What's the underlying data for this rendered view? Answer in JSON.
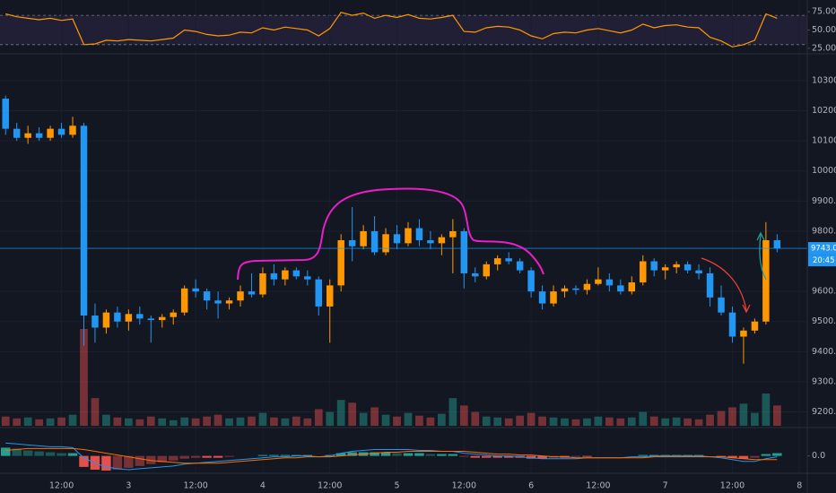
{
  "chart_data": [
    {
      "type": "line",
      "ylim": [
        20,
        86
      ],
      "yticks": [
        {
          "value": 75,
          "label": "75.00"
        },
        {
          "value": 50,
          "label": "50.00"
        },
        {
          "value": 25,
          "label": "25.00"
        }
      ],
      "levels": [
        70,
        30
      ],
      "color": "#ff9800",
      "band_color": "#7e57c2",
      "values": [
        72,
        68,
        66,
        64,
        66,
        63,
        65,
        30,
        31,
        36,
        35,
        37,
        36,
        35,
        37,
        39,
        50,
        48,
        44,
        42,
        43,
        47,
        46,
        53,
        50,
        54,
        52,
        50,
        42,
        52,
        74,
        70,
        73,
        66,
        70,
        67,
        71,
        66,
        65,
        67,
        70,
        48,
        47,
        53,
        55,
        54,
        50,
        42,
        38,
        45,
        47,
        46,
        50,
        52,
        49,
        46,
        50,
        58,
        53,
        56,
        57,
        54,
        53,
        40,
        35,
        27,
        30,
        36,
        72,
        66
      ]
    },
    {
      "type": "candlestick",
      "ylim": [
        9154,
        10383
      ],
      "xlim": [
        0.5,
        72.7
      ],
      "grid": true,
      "up_color": "#ff9800",
      "down_color": "#2196f3",
      "yticks": [
        {
          "value": 10300,
          "label": "10300.0"
        },
        {
          "value": 10200,
          "label": "10200.0"
        },
        {
          "value": 10100,
          "label": "10100.0"
        },
        {
          "value": 10000,
          "label": "10000.0"
        },
        {
          "value": 9900,
          "label": "9900.0"
        },
        {
          "value": 9800,
          "label": "9800.0"
        },
        {
          "value": 9600,
          "label": "9600.0"
        },
        {
          "value": 9500,
          "label": "9500.0"
        },
        {
          "value": 9400,
          "label": "9400.0"
        },
        {
          "value": 9300,
          "label": "9300.0"
        },
        {
          "value": 9200,
          "label": "9200.0"
        }
      ],
      "xticks": [
        {
          "value": 6,
          "label": "12:00"
        },
        {
          "value": 12,
          "label": "3"
        },
        {
          "value": 18,
          "label": "12:00"
        },
        {
          "value": 24,
          "label": "4"
        },
        {
          "value": 30,
          "label": "12:00"
        },
        {
          "value": 36,
          "label": "5"
        },
        {
          "value": 42,
          "label": "12:00"
        },
        {
          "value": 48,
          "label": "6"
        },
        {
          "value": 54,
          "label": "12:00"
        },
        {
          "value": 60,
          "label": "7"
        },
        {
          "value": 66,
          "label": "12:00"
        },
        {
          "value": 72,
          "label": "8"
        }
      ],
      "last_price": {
        "value": 9743,
        "label": "9743.0"
      },
      "countdown": "20:45",
      "ohlc": [
        [
          10240,
          10250,
          10120,
          10140
        ],
        [
          10140,
          10160,
          10100,
          10110
        ],
        [
          10110,
          10150,
          10090,
          10125
        ],
        [
          10125,
          10145,
          10100,
          10110
        ],
        [
          10110,
          10150,
          10100,
          10140
        ],
        [
          10140,
          10160,
          10110,
          10120
        ],
        [
          10120,
          10180,
          10110,
          10150
        ],
        [
          10150,
          10160,
          9420,
          9520
        ],
        [
          9520,
          9560,
          9430,
          9480
        ],
        [
          9480,
          9540,
          9460,
          9530
        ],
        [
          9530,
          9550,
          9480,
          9500
        ],
        [
          9500,
          9540,
          9470,
          9525
        ],
        [
          9525,
          9550,
          9490,
          9510
        ],
        [
          9510,
          9520,
          9430,
          9505
        ],
        [
          9505,
          9525,
          9480,
          9515
        ],
        [
          9515,
          9540,
          9490,
          9530
        ],
        [
          9530,
          9620,
          9520,
          9610
        ],
        [
          9610,
          9640,
          9580,
          9600
        ],
        [
          9600,
          9610,
          9540,
          9570
        ],
        [
          9570,
          9600,
          9510,
          9560
        ],
        [
          9560,
          9580,
          9540,
          9570
        ],
        [
          9570,
          9620,
          9550,
          9600
        ],
        [
          9600,
          9660,
          9580,
          9590
        ],
        [
          9590,
          9680,
          9580,
          9660
        ],
        [
          9660,
          9690,
          9620,
          9640
        ],
        [
          9640,
          9680,
          9620,
          9670
        ],
        [
          9670,
          9680,
          9640,
          9650
        ],
        [
          9650,
          9670,
          9620,
          9640
        ],
        [
          9640,
          9650,
          9520,
          9550
        ],
        [
          9550,
          9640,
          9430,
          9620
        ],
        [
          9620,
          9790,
          9600,
          9770
        ],
        [
          9770,
          9880,
          9700,
          9750
        ],
        [
          9750,
          9820,
          9740,
          9800
        ],
        [
          9800,
          9850,
          9720,
          9730
        ],
        [
          9730,
          9810,
          9720,
          9790
        ],
        [
          9790,
          9820,
          9740,
          9760
        ],
        [
          9760,
          9830,
          9750,
          9810
        ],
        [
          9810,
          9840,
          9750,
          9770
        ],
        [
          9770,
          9800,
          9740,
          9760
        ],
        [
          9760,
          9790,
          9720,
          9780
        ],
        [
          9780,
          9840,
          9660,
          9800
        ],
        [
          9800,
          9810,
          9610,
          9660
        ],
        [
          9660,
          9680,
          9630,
          9650
        ],
        [
          9650,
          9700,
          9640,
          9690
        ],
        [
          9690,
          9720,
          9670,
          9710
        ],
        [
          9710,
          9730,
          9690,
          9700
        ],
        [
          9700,
          9710,
          9660,
          9670
        ],
        [
          9670,
          9680,
          9580,
          9600
        ],
        [
          9600,
          9620,
          9540,
          9560
        ],
        [
          9560,
          9620,
          9550,
          9600
        ],
        [
          9600,
          9620,
          9580,
          9610
        ],
        [
          9610,
          9620,
          9590,
          9605
        ],
        [
          9605,
          9640,
          9590,
          9625
        ],
        [
          9625,
          9680,
          9620,
          9640
        ],
        [
          9640,
          9660,
          9600,
          9620
        ],
        [
          9620,
          9640,
          9590,
          9600
        ],
        [
          9600,
          9650,
          9590,
          9630
        ],
        [
          9630,
          9720,
          9620,
          9700
        ],
        [
          9700,
          9710,
          9650,
          9670
        ],
        [
          9670,
          9690,
          9640,
          9680
        ],
        [
          9680,
          9700,
          9660,
          9690
        ],
        [
          9690,
          9700,
          9660,
          9670
        ],
        [
          9670,
          9690,
          9640,
          9660
        ],
        [
          9660,
          9680,
          9550,
          9580
        ],
        [
          9580,
          9620,
          9520,
          9530
        ],
        [
          9530,
          9550,
          9430,
          9450
        ],
        [
          9450,
          9480,
          9360,
          9470
        ],
        [
          9470,
          9510,
          9460,
          9500
        ],
        [
          9500,
          9830,
          9490,
          9770
        ],
        [
          9770,
          9790,
          9730,
          9743
        ]
      ],
      "volume": [
        10,
        8,
        9,
        7,
        8,
        9,
        12,
        105,
        30,
        12,
        9,
        8,
        7,
        10,
        8,
        6,
        9,
        8,
        10,
        12,
        8,
        9,
        10,
        14,
        9,
        8,
        10,
        8,
        18,
        15,
        28,
        25,
        14,
        20,
        12,
        10,
        14,
        11,
        9,
        13,
        30,
        22,
        15,
        10,
        9,
        8,
        11,
        14,
        10,
        9,
        8,
        7,
        8,
        10,
        9,
        8,
        9,
        15,
        10,
        8,
        9,
        8,
        7,
        12,
        16,
        20,
        24,
        14,
        35,
        22
      ]
    },
    {
      "type": "bar",
      "ylim": [
        -17,
        28
      ],
      "yticks": [
        {
          "value": 0,
          "label": "0.0"
        }
      ],
      "pos_color": "#26a69a",
      "neg_color": "#ef5350",
      "values": [
        9,
        8,
        6,
        5,
        4,
        3,
        3,
        -12,
        -15,
        -16,
        -15,
        -13,
        -11,
        -9,
        -7,
        -5,
        -3,
        -2,
        -2,
        -2,
        -1,
        0,
        0,
        1,
        1,
        1,
        1,
        1,
        0,
        1,
        3,
        4,
        4,
        4,
        4,
        3,
        3,
        3,
        2,
        2,
        2,
        -1,
        -2,
        -2,
        -2,
        -2,
        -2,
        -3,
        -3,
        -2,
        -2,
        -1,
        -1,
        0,
        0,
        0,
        0,
        1,
        1,
        1,
        1,
        1,
        1,
        0,
        -1,
        -2,
        -3,
        -2,
        2,
        3
      ],
      "series": [
        {
          "color": "#2196f3",
          "values": [
            14,
            13,
            12,
            11,
            10,
            10,
            9,
            -2,
            -8,
            -12,
            -14,
            -15,
            -14,
            -13,
            -12,
            -11,
            -9,
            -8,
            -7,
            -6,
            -5,
            -4,
            -3,
            -2,
            -1,
            -1,
            0,
            0,
            -1,
            0,
            3,
            5,
            6,
            7,
            7,
            7,
            7,
            6,
            6,
            5,
            5,
            3,
            2,
            1,
            0,
            0,
            -1,
            -2,
            -3,
            -3,
            -3,
            -3,
            -2,
            -2,
            -2,
            -2,
            -1,
            -1,
            0,
            0,
            0,
            0,
            0,
            -1,
            -2,
            -4,
            -6,
            -6,
            -3,
            -1
          ]
        },
        {
          "color": "#ff6d00",
          "values": [
            6,
            7,
            8,
            8,
            8,
            8,
            8,
            7,
            5,
            3,
            1,
            -1,
            -3,
            -5,
            -6,
            -7,
            -8,
            -8,
            -8,
            -8,
            -7,
            -6,
            -5,
            -4,
            -3,
            -2,
            -2,
            -1,
            -1,
            -1,
            0,
            1,
            2,
            3,
            4,
            4,
            5,
            5,
            5,
            5,
            5,
            5,
            4,
            3,
            2,
            2,
            1,
            1,
            0,
            -1,
            -1,
            -2,
            -2,
            -2,
            -2,
            -2,
            -2,
            -2,
            -1,
            -1,
            -1,
            -1,
            -1,
            -1,
            -1,
            -2,
            -3,
            -4,
            -4,
            -4
          ]
        }
      ]
    }
  ]
}
